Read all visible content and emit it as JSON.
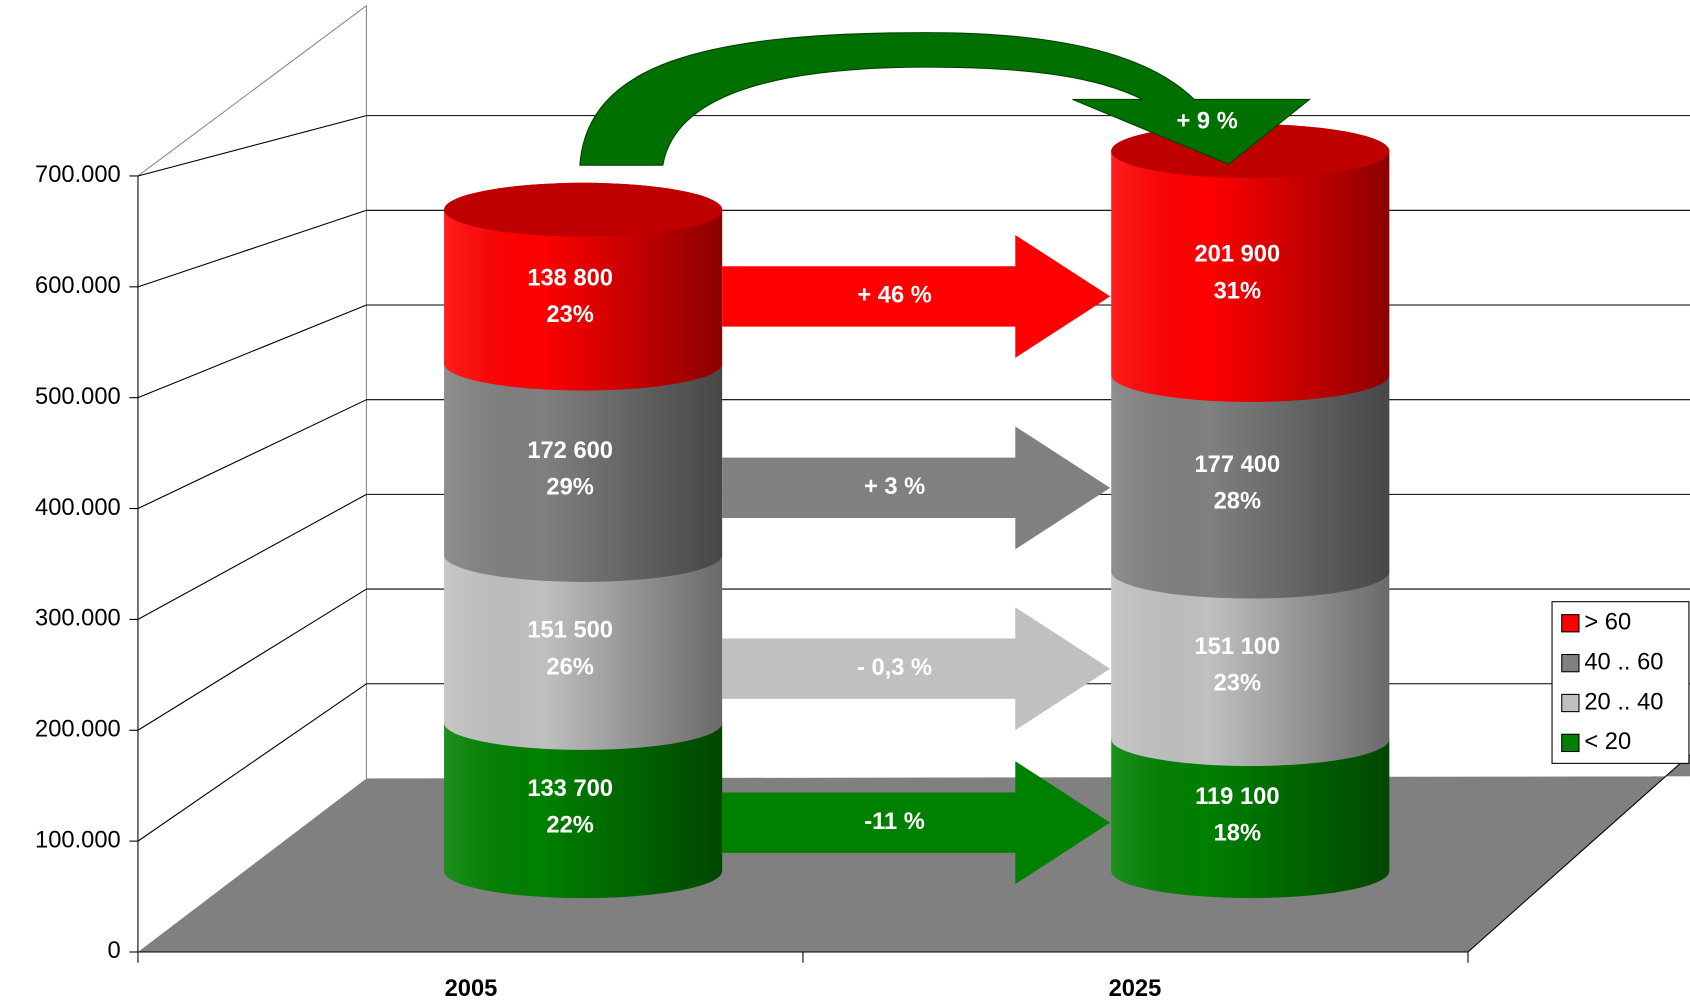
{
  "chart_data": {
    "type": "bar",
    "stacked": true,
    "shape": "cylinder",
    "categories": [
      "2005",
      "2025"
    ],
    "series": [
      {
        "name": "< 20",
        "color": "#008000",
        "values": [
          133700,
          119100
        ],
        "value_labels": [
          "133 700",
          "119 100"
        ],
        "share_labels": [
          "22%",
          "18%"
        ],
        "change_label": "-11 %"
      },
      {
        "name": "20 .. 40",
        "color": "#c0c0c0",
        "values": [
          151500,
          151100
        ],
        "value_labels": [
          "151 500",
          "151 100"
        ],
        "share_labels": [
          "26%",
          "23%"
        ],
        "change_label": "- 0,3 %"
      },
      {
        "name": "40 .. 60",
        "color": "#808080",
        "values": [
          172600,
          177400
        ],
        "value_labels": [
          "172 600",
          "177 400"
        ],
        "share_labels": [
          "29%",
          "28%"
        ],
        "change_label": "+ 3 %"
      },
      {
        "name": "> 60",
        "color": "#ff0000",
        "values": [
          138800,
          201900
        ],
        "value_labels": [
          "138 800",
          "201 900"
        ],
        "share_labels": [
          "23%",
          "31%"
        ],
        "change_label": "+ 46 %"
      }
    ],
    "total_change_label": "+ 9 %",
    "ylim": [
      0,
      700000
    ],
    "yticks": [
      0,
      {
        "value": 100000,
        "label": "100.000"
      },
      {
        "value": 200000,
        "label": "200.000"
      },
      {
        "value": 300000,
        "label": "300.000"
      },
      {
        "value": 400000,
        "label": "400.000"
      },
      {
        "value": 500000,
        "label": "500.000"
      },
      {
        "value": 600000,
        "label": "600.000"
      },
      {
        "value": 700000,
        "label": "700.000"
      }
    ],
    "grid": true,
    "legend": "right"
  }
}
